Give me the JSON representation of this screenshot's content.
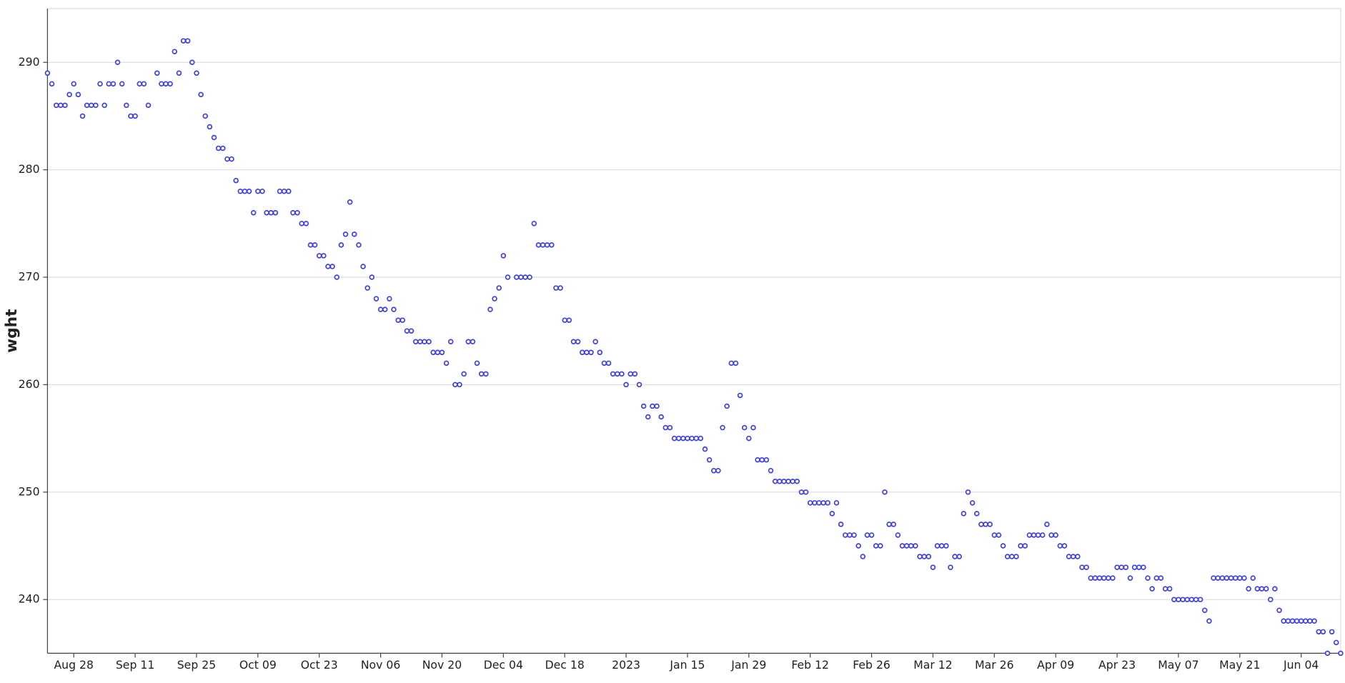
{
  "chart_data": {
    "type": "scatter",
    "y_label": "wght",
    "color": "#3b3bf0",
    "grid": true,
    "xlim": [
      "2022-08-22",
      "2023-06-13"
    ],
    "xticks": [
      {
        "value": "2022-08-28",
        "label": "Aug 28"
      },
      {
        "value": "2022-09-11",
        "label": "Sep 11"
      },
      {
        "value": "2022-09-25",
        "label": "Sep 25"
      },
      {
        "value": "2022-10-09",
        "label": "Oct 09"
      },
      {
        "value": "2022-10-23",
        "label": "Oct 23"
      },
      {
        "value": "2022-11-06",
        "label": "Nov 06"
      },
      {
        "value": "2022-11-20",
        "label": "Nov 20"
      },
      {
        "value": "2022-12-04",
        "label": "Dec 04"
      },
      {
        "value": "2022-12-18",
        "label": "Dec 18"
      },
      {
        "value": "2023-01-01",
        "label": "2023"
      },
      {
        "value": "2023-01-15",
        "label": "Jan 15"
      },
      {
        "value": "2023-01-29",
        "label": "Jan 29"
      },
      {
        "value": "2023-02-12",
        "label": "Feb 12"
      },
      {
        "value": "2023-02-26",
        "label": "Feb 26"
      },
      {
        "value": "2023-03-12",
        "label": "Mar 12"
      },
      {
        "value": "2023-03-26",
        "label": "Mar 26"
      },
      {
        "value": "2023-04-09",
        "label": "Apr 09"
      },
      {
        "value": "2023-04-23",
        "label": "Apr 23"
      },
      {
        "value": "2023-05-07",
        "label": "May 07"
      },
      {
        "value": "2023-05-21",
        "label": "May 21"
      },
      {
        "value": "2023-06-04",
        "label": "Jun 04"
      }
    ],
    "ylim": [
      235,
      295
    ],
    "yticks": [
      240,
      250,
      260,
      270,
      280,
      290
    ],
    "x": [
      "2022-08-22",
      "2022-08-23",
      "2022-08-24",
      "2022-08-25",
      "2022-08-26",
      "2022-08-27",
      "2022-08-28",
      "2022-08-29",
      "2022-08-30",
      "2022-08-31",
      "2022-09-01",
      "2022-09-02",
      "2022-09-03",
      "2022-09-04",
      "2022-09-05",
      "2022-09-06",
      "2022-09-07",
      "2022-09-08",
      "2022-09-09",
      "2022-09-10",
      "2022-09-11",
      "2022-09-12",
      "2022-09-13",
      "2022-09-14",
      "2022-09-15",
      "2022-09-16",
      "2022-09-17",
      "2022-09-18",
      "2022-09-19",
      "2022-09-20",
      "2022-09-21",
      "2022-09-22",
      "2022-09-23",
      "2022-09-24",
      "2022-09-25",
      "2022-09-26",
      "2022-09-27",
      "2022-09-28",
      "2022-09-29",
      "2022-09-30",
      "2022-10-01",
      "2022-10-02",
      "2022-10-03",
      "2022-10-04",
      "2022-10-05",
      "2022-10-06",
      "2022-10-07",
      "2022-10-08",
      "2022-10-09",
      "2022-10-10",
      "2022-10-11",
      "2022-10-12",
      "2022-10-13",
      "2022-10-14",
      "2022-10-15",
      "2022-10-16",
      "2022-10-17",
      "2022-10-18",
      "2022-10-19",
      "2022-10-20",
      "2022-10-21",
      "2022-10-22",
      "2022-10-23",
      "2022-10-24",
      "2022-10-25",
      "2022-10-26",
      "2022-10-27",
      "2022-10-28",
      "2022-10-29",
      "2022-10-30",
      "2022-10-31",
      "2022-11-01",
      "2022-11-02",
      "2022-11-03",
      "2022-11-04",
      "2022-11-05",
      "2022-11-06",
      "2022-11-07",
      "2022-11-08",
      "2022-11-09",
      "2022-11-10",
      "2022-11-11",
      "2022-11-12",
      "2022-11-13",
      "2022-11-14",
      "2022-11-15",
      "2022-11-16",
      "2022-11-17",
      "2022-11-18",
      "2022-11-19",
      "2022-11-20",
      "2022-11-21",
      "2022-11-22",
      "2022-11-23",
      "2022-11-24",
      "2022-11-25",
      "2022-11-26",
      "2022-11-27",
      "2022-11-28",
      "2022-11-29",
      "2022-11-30",
      "2022-12-01",
      "2022-12-02",
      "2022-12-03",
      "2022-12-04",
      "2022-12-05",
      "2022-12-06",
      "2022-12-07",
      "2022-12-08",
      "2022-12-09",
      "2022-12-10",
      "2022-12-11",
      "2022-12-12",
      "2022-12-13",
      "2022-12-14",
      "2022-12-15",
      "2022-12-16",
      "2022-12-17",
      "2022-12-18",
      "2022-12-19",
      "2022-12-20",
      "2022-12-21",
      "2022-12-22",
      "2022-12-23",
      "2022-12-24",
      "2022-12-25",
      "2022-12-26",
      "2022-12-27",
      "2022-12-28",
      "2022-12-29",
      "2022-12-30",
      "2022-12-31",
      "2023-01-01",
      "2023-01-02",
      "2023-01-03",
      "2023-01-04",
      "2023-01-05",
      "2023-01-06",
      "2023-01-07",
      "2023-01-08",
      "2023-01-09",
      "2023-01-10",
      "2023-01-11",
      "2023-01-12",
      "2023-01-13",
      "2023-01-14",
      "2023-01-15",
      "2023-01-16",
      "2023-01-17",
      "2023-01-18",
      "2023-01-19",
      "2023-01-20",
      "2023-01-21",
      "2023-01-22",
      "2023-01-23",
      "2023-01-24",
      "2023-01-25",
      "2023-01-26",
      "2023-01-27",
      "2023-01-28",
      "2023-01-29",
      "2023-01-30",
      "2023-01-31",
      "2023-02-01",
      "2023-02-02",
      "2023-02-03",
      "2023-02-04",
      "2023-02-05",
      "2023-02-06",
      "2023-02-07",
      "2023-02-08",
      "2023-02-09",
      "2023-02-10",
      "2023-02-11",
      "2023-02-12",
      "2023-02-13",
      "2023-02-14",
      "2023-02-15",
      "2023-02-16",
      "2023-02-17",
      "2023-02-18",
      "2023-02-19",
      "2023-02-20",
      "2023-02-21",
      "2023-02-22",
      "2023-02-23",
      "2023-02-24",
      "2023-02-25",
      "2023-02-26",
      "2023-02-27",
      "2023-02-28",
      "2023-03-01",
      "2023-03-02",
      "2023-03-03",
      "2023-03-04",
      "2023-03-05",
      "2023-03-06",
      "2023-03-07",
      "2023-03-08",
      "2023-03-09",
      "2023-03-10",
      "2023-03-11",
      "2023-03-12",
      "2023-03-13",
      "2023-03-14",
      "2023-03-15",
      "2023-03-16",
      "2023-03-17",
      "2023-03-18",
      "2023-03-19",
      "2023-03-20",
      "2023-03-21",
      "2023-03-22",
      "2023-03-23",
      "2023-03-24",
      "2023-03-25",
      "2023-03-26",
      "2023-03-27",
      "2023-03-28",
      "2023-03-29",
      "2023-03-30",
      "2023-03-31",
      "2023-04-01",
      "2023-04-02",
      "2023-04-03",
      "2023-04-04",
      "2023-04-05",
      "2023-04-06",
      "2023-04-07",
      "2023-04-08",
      "2023-04-09",
      "2023-04-10",
      "2023-04-11",
      "2023-04-12",
      "2023-04-13",
      "2023-04-14",
      "2023-04-15",
      "2023-04-16",
      "2023-04-17",
      "2023-04-18",
      "2023-04-19",
      "2023-04-20",
      "2023-04-21",
      "2023-04-22",
      "2023-04-23",
      "2023-04-24",
      "2023-04-25",
      "2023-04-26",
      "2023-04-27",
      "2023-04-28",
      "2023-04-29",
      "2023-04-30",
      "2023-05-01",
      "2023-05-02",
      "2023-05-03",
      "2023-05-04",
      "2023-05-05",
      "2023-05-06",
      "2023-05-07",
      "2023-05-08",
      "2023-05-09",
      "2023-05-10",
      "2023-05-11",
      "2023-05-12",
      "2023-05-13",
      "2023-05-14",
      "2023-05-15",
      "2023-05-16",
      "2023-05-17",
      "2023-05-18",
      "2023-05-19",
      "2023-05-20",
      "2023-05-21",
      "2023-05-22",
      "2023-05-23",
      "2023-05-24",
      "2023-05-25",
      "2023-05-26",
      "2023-05-27",
      "2023-05-28",
      "2023-05-29",
      "2023-05-30",
      "2023-05-31",
      "2023-06-01",
      "2023-06-02",
      "2023-06-03",
      "2023-06-04",
      "2023-06-05",
      "2023-06-06",
      "2023-06-07",
      "2023-06-08",
      "2023-06-09",
      "2023-06-10",
      "2023-06-11",
      "2023-06-12",
      "2023-06-13"
    ],
    "values": [
      289,
      288,
      286,
      286,
      286,
      287,
      288,
      287,
      285,
      286,
      286,
      286,
      288,
      286,
      288,
      288,
      290,
      288,
      286,
      285,
      285,
      288,
      288,
      286,
      null,
      289,
      288,
      288,
      288,
      291,
      289,
      292,
      292,
      290,
      289,
      287,
      285,
      284,
      283,
      282,
      282,
      281,
      281,
      279,
      278,
      278,
      278,
      276,
      278,
      278,
      276,
      276,
      276,
      278,
      278,
      278,
      276,
      276,
      275,
      275,
      273,
      273,
      272,
      272,
      271,
      271,
      270,
      273,
      274,
      277,
      274,
      273,
      271,
      269,
      270,
      268,
      267,
      267,
      268,
      267,
      266,
      266,
      265,
      265,
      264,
      264,
      264,
      264,
      263,
      263,
      263,
      262,
      264,
      260,
      260,
      261,
      264,
      264,
      262,
      261,
      261,
      267,
      268,
      269,
      272,
      270,
      null,
      270,
      270,
      270,
      270,
      275,
      273,
      273,
      273,
      273,
      269,
      269,
      266,
      266,
      264,
      264,
      263,
      263,
      263,
      264,
      263,
      262,
      262,
      261,
      261,
      261,
      260,
      261,
      261,
      260,
      258,
      257,
      258,
      258,
      257,
      256,
      256,
      255,
      255,
      255,
      255,
      255,
      255,
      255,
      254,
      253,
      252,
      252,
      256,
      258,
      262,
      262,
      259,
      256,
      255,
      256,
      253,
      253,
      253,
      252,
      251,
      251,
      251,
      251,
      251,
      251,
      250,
      250,
      249,
      249,
      249,
      249,
      249,
      248,
      249,
      247,
      246,
      246,
      246,
      245,
      244,
      246,
      246,
      245,
      245,
      250,
      247,
      247,
      246,
      245,
      245,
      245,
      245,
      244,
      244,
      244,
      243,
      245,
      245,
      245,
      243,
      244,
      244,
      248,
      250,
      249,
      248,
      247,
      247,
      247,
      246,
      246,
      245,
      244,
      244,
      244,
      245,
      245,
      246,
      246,
      246,
      246,
      247,
      246,
      246,
      245,
      245,
      244,
      244,
      244,
      243,
      243,
      242,
      242,
      242,
      242,
      242,
      242,
      243,
      243,
      243,
      242,
      243,
      243,
      243,
      242,
      241,
      242,
      242,
      241,
      241,
      240,
      240,
      240,
      240,
      240,
      240,
      240,
      239,
      238,
      242,
      242,
      242,
      242,
      242,
      242,
      242,
      242,
      241,
      242,
      241,
      241,
      241,
      240,
      241,
      239,
      238,
      238,
      238,
      238,
      238,
      238,
      238,
      238,
      237,
      237,
      235,
      237,
      236,
      235
    ]
  }
}
